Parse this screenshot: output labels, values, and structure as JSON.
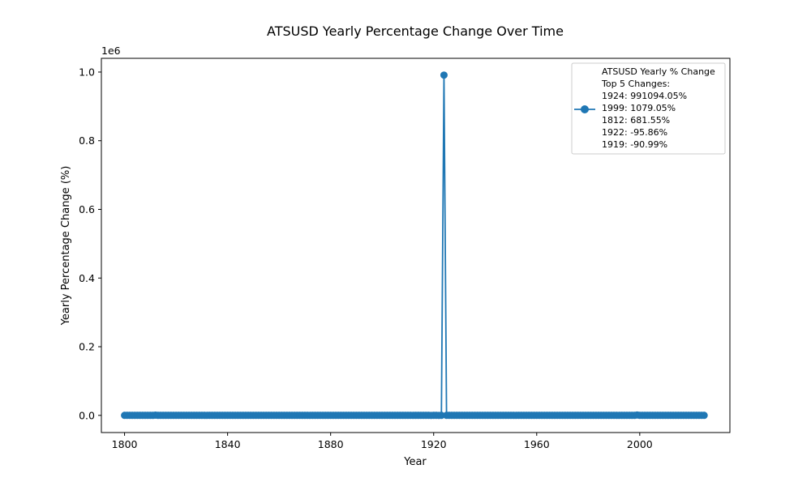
{
  "chart_data": {
    "type": "line",
    "title": "ATSUSD Yearly Percentage Change Over Time",
    "xlabel": "Year",
    "ylabel": "Yearly Percentage Change (%)",
    "y_offset_text": "1e6",
    "y_scale_factor": 1000000,
    "xlim": [
      1791,
      2035
    ],
    "ylim": [
      -50000,
      1040000
    ],
    "x_ticks": [
      1800,
      1840,
      1880,
      1920,
      1960,
      2000
    ],
    "y_ticks": [
      0,
      200000,
      400000,
      600000,
      800000,
      1000000
    ],
    "y_tick_labels": [
      "0.0",
      "0.2",
      "0.4",
      "0.6",
      "0.8",
      "1.0"
    ],
    "x_range": [
      1800,
      2025
    ],
    "x_step": 1,
    "baseline_value": 0,
    "highlighted_points": [
      {
        "x": 1812,
        "y": 681.55
      },
      {
        "x": 1919,
        "y": -90.99
      },
      {
        "x": 1922,
        "y": -95.86
      },
      {
        "x": 1924,
        "y": 991094.05
      },
      {
        "x": 1999,
        "y": 1079.05
      }
    ],
    "series": [
      {
        "name": "ATSUSD Yearly % Change",
        "color": "#1f77b4",
        "marker": "circle"
      }
    ],
    "legend": {
      "placement": "top-right",
      "lines": [
        "ATSUSD Yearly % Change",
        "Top 5 Changes:",
        "1924: 991094.05%",
        "1999: 1079.05%",
        "1812: 681.55%",
        "1922: -95.86%",
        "1919: -90.99%"
      ]
    },
    "grid": false
  }
}
